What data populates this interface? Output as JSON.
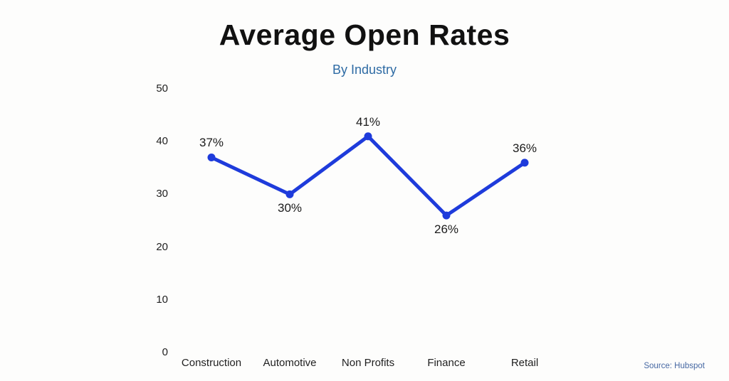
{
  "chart_data": {
    "type": "line",
    "title": "Average Open Rates",
    "subtitle": "By Industry",
    "categories": [
      "Construction",
      "Automotive",
      "Non Profits",
      "Finance",
      "Retail"
    ],
    "values": [
      37,
      30,
      41,
      26,
      36
    ],
    "value_labels": [
      "37%",
      "30%",
      "41%",
      "26%",
      "36%"
    ],
    "label_positions": [
      "above",
      "below",
      "above",
      "below",
      "above"
    ],
    "yticks": [
      0,
      10,
      20,
      30,
      40,
      50
    ],
    "ylim": [
      0,
      50
    ],
    "grid": false,
    "legend": false,
    "line_color": "#1e3bdb",
    "marker_color": "#1e3bdb",
    "title_color": "#111111",
    "subtitle_color": "#2e6ba4",
    "source": "Source: Hubspot"
  }
}
